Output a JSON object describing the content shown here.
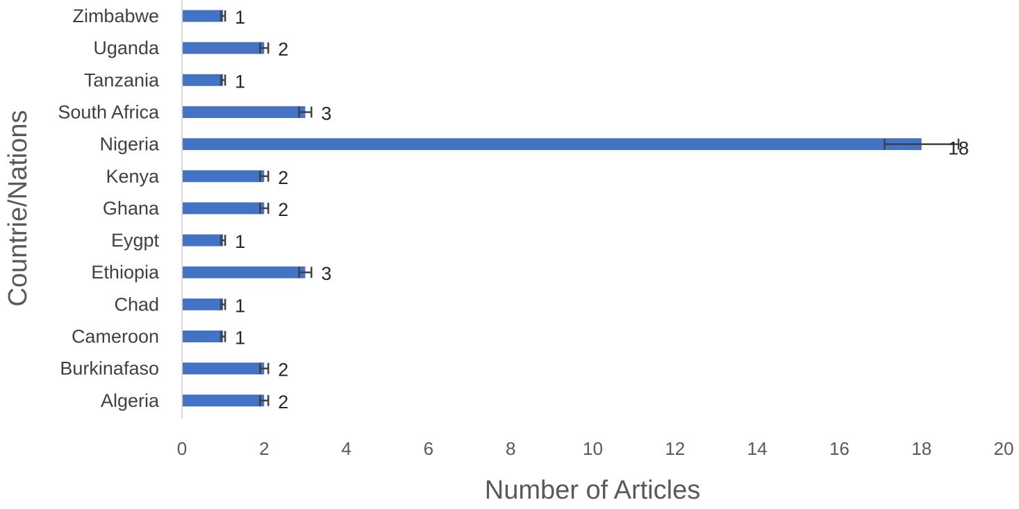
{
  "chart_data": {
    "type": "bar",
    "orientation": "horizontal",
    "categories": [
      "Algeria",
      "Burkinafaso",
      "Cameroon",
      "Chad",
      "Ethiopia",
      "Eygpt",
      "Ghana",
      "Kenya",
      "Nigeria",
      "South Africa",
      "Tanzania",
      "Uganda",
      "Zimbabwe"
    ],
    "values": [
      2,
      2,
      1,
      1,
      3,
      1,
      2,
      2,
      18,
      3,
      1,
      2,
      1
    ],
    "error_bars": [
      0.1,
      0.1,
      0.05,
      0.05,
      0.15,
      0.05,
      0.1,
      0.1,
      0.9,
      0.15,
      0.05,
      0.1,
      0.05
    ],
    "data_labels": [
      "2",
      "2",
      "1",
      "1",
      "3",
      "1",
      "2",
      "2",
      "18",
      "3",
      "1",
      "2",
      "1"
    ],
    "xlabel": "Number of Articles",
    "ylabel": "Countrie/Nations",
    "xlim": [
      0,
      20
    ],
    "xticks": [
      "0",
      "2",
      "4",
      "6",
      "8",
      "10",
      "12",
      "14",
      "16",
      "18",
      "20"
    ],
    "grid": false,
    "legend": "none",
    "bar_color": "#4472C4",
    "error_bar_color": "#404040"
  }
}
